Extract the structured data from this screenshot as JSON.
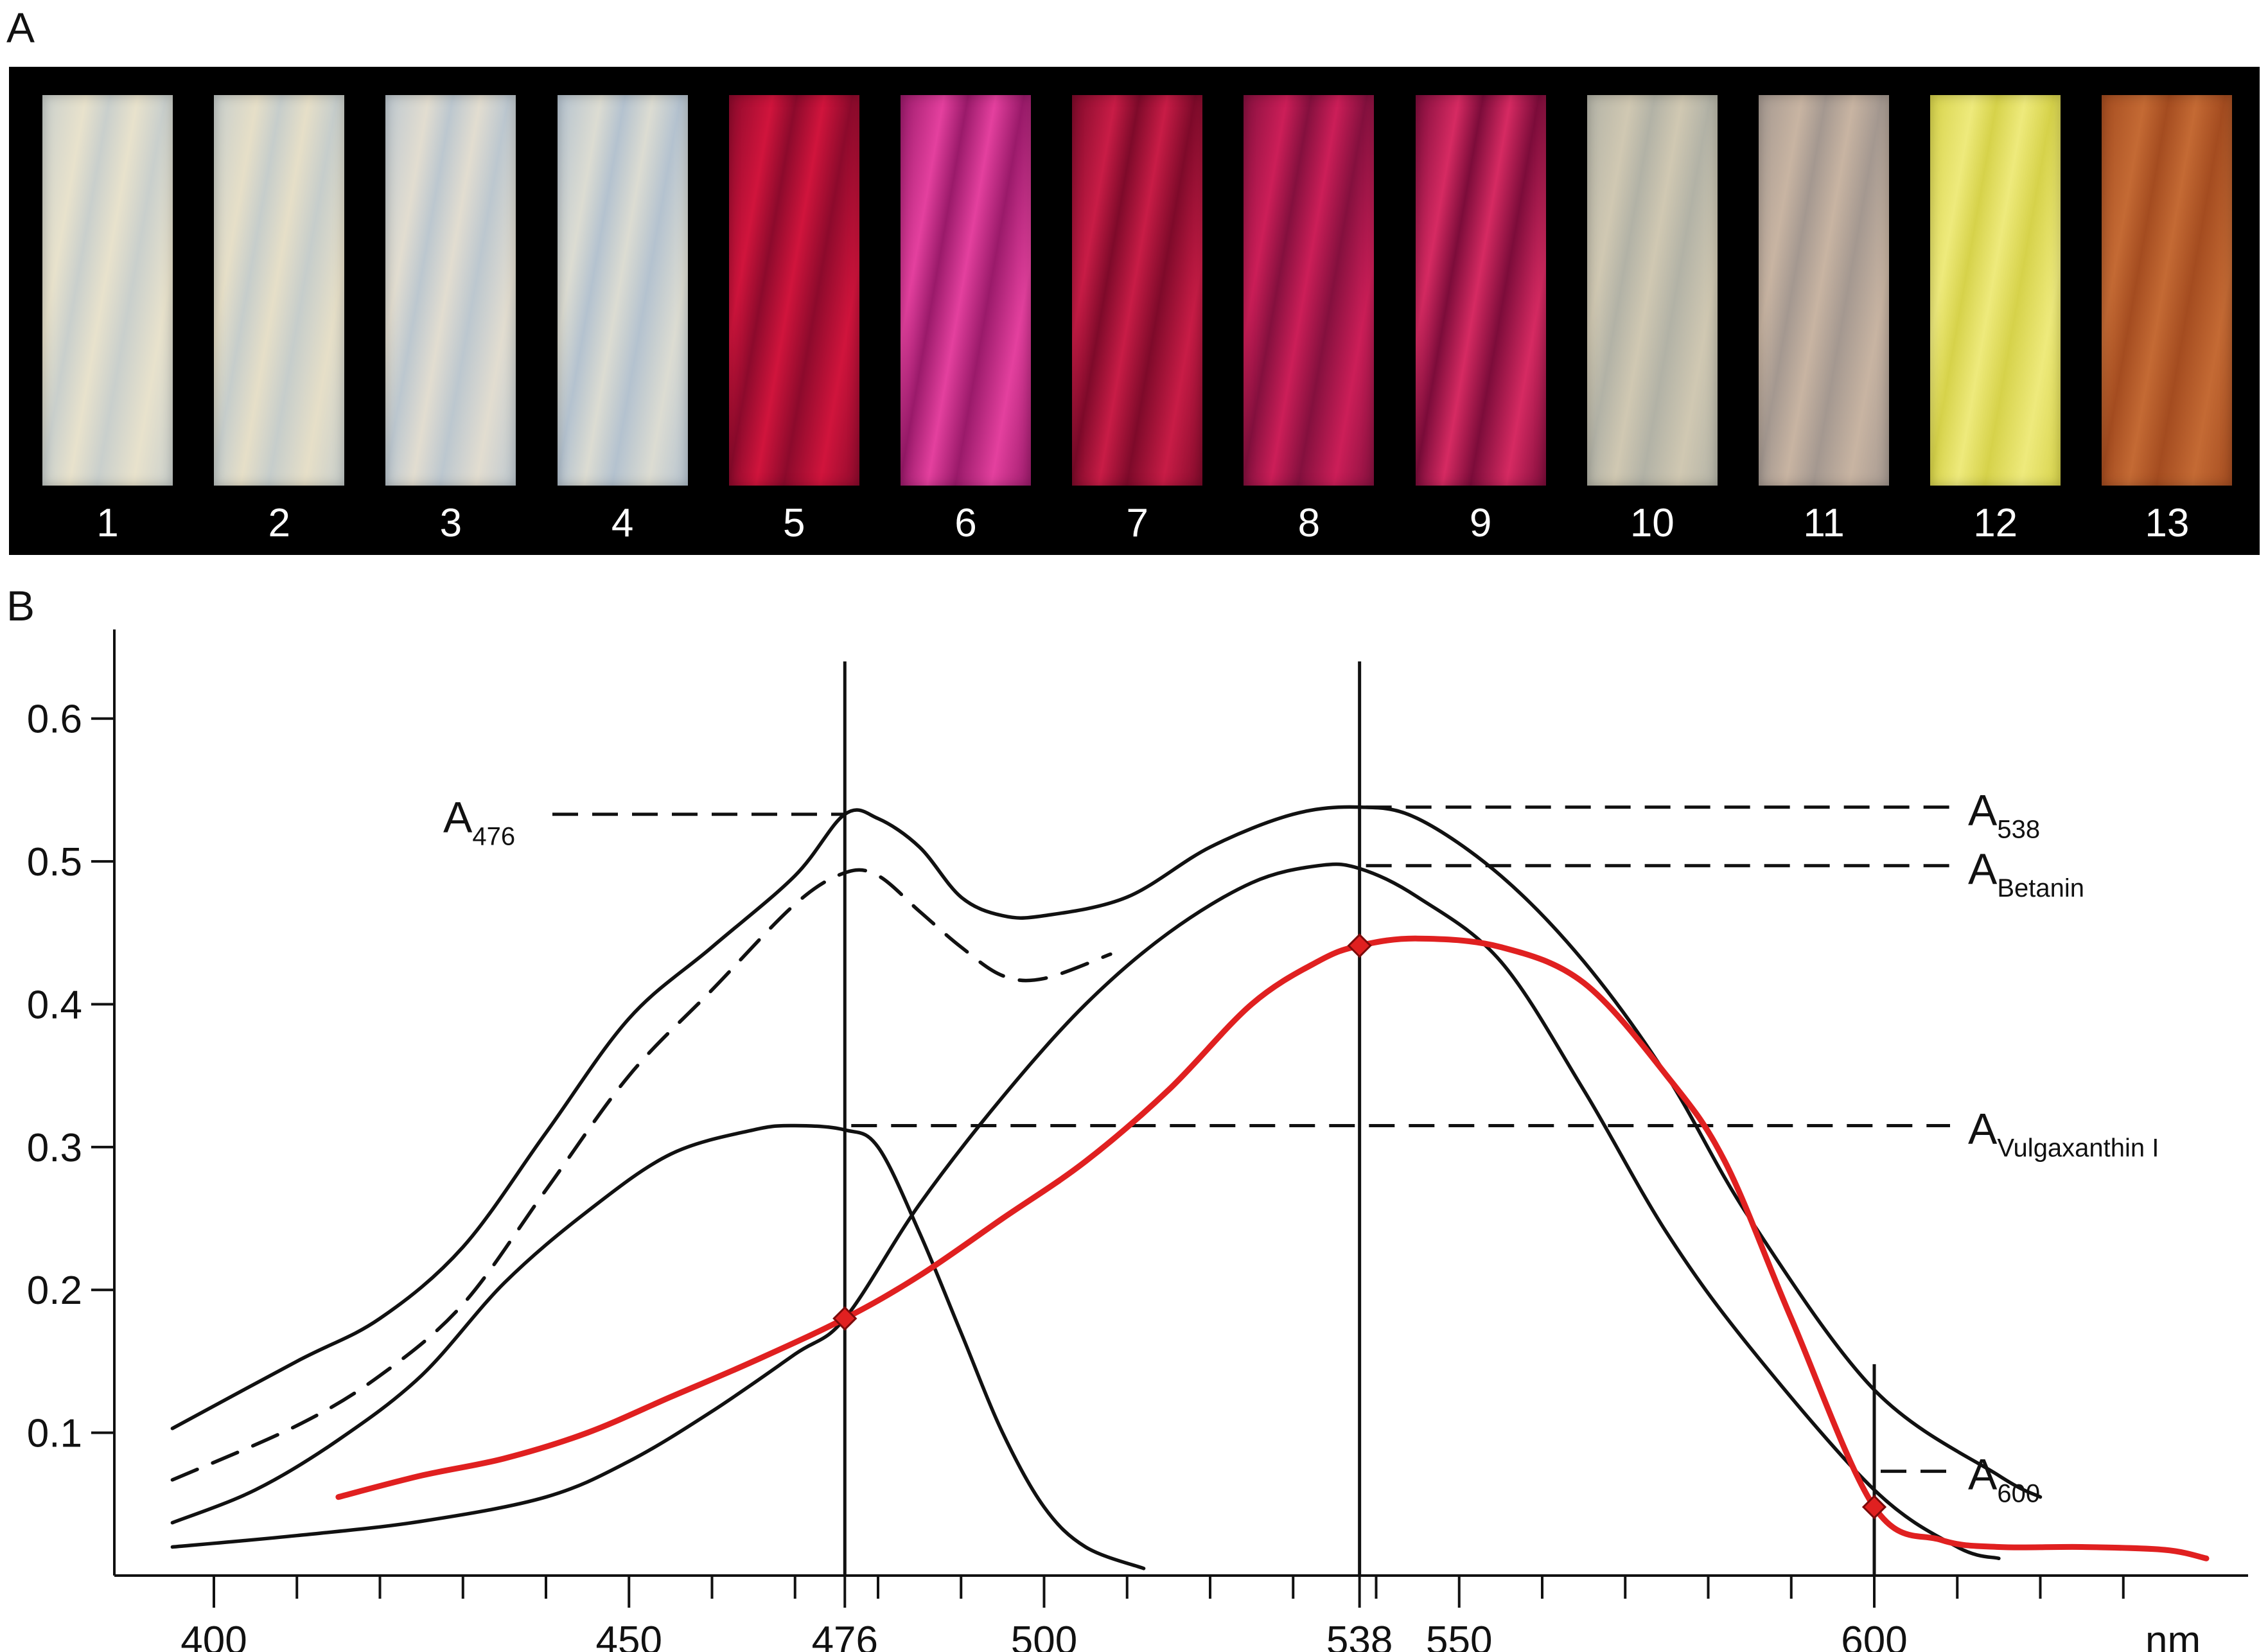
{
  "panels": {
    "a": "A",
    "b": "B"
  },
  "samples": [
    {
      "label": "1",
      "color": "#c9cfcc",
      "highlight": "#e8e2cc"
    },
    {
      "label": "2",
      "color": "#c6cdcb",
      "highlight": "#e6dfc8"
    },
    {
      "label": "3",
      "color": "#bcc7cf",
      "highlight": "#e2ddd0"
    },
    {
      "label": "4",
      "color": "#b4c2cf",
      "highlight": "#dcdcd2"
    },
    {
      "label": "5",
      "color": "#8c0a2c",
      "highlight": "#d0143c"
    },
    {
      "label": "6",
      "color": "#9a1a6a",
      "highlight": "#e4409e"
    },
    {
      "label": "7",
      "color": "#7e0a2a",
      "highlight": "#c81c46"
    },
    {
      "label": "8",
      "color": "#84103e",
      "highlight": "#cc1e58"
    },
    {
      "label": "9",
      "color": "#7c0c3a",
      "highlight": "#d62a62"
    },
    {
      "label": "10",
      "color": "#b2b2a6",
      "highlight": "#d0c8b2"
    },
    {
      "label": "11",
      "color": "#a49890",
      "highlight": "#c8b4a2"
    },
    {
      "label": "12",
      "color": "#d6d24a",
      "highlight": "#eeea7c"
    },
    {
      "label": "13",
      "color": "#a44c20",
      "highlight": "#c46a34"
    }
  ],
  "chart_data": {
    "type": "line",
    "xlabel": "nm",
    "ylabel": "",
    "xlim": [
      390,
      640
    ],
    "ylim": [
      0,
      0.63
    ],
    "x_ticks": [
      400,
      450,
      476,
      500,
      538,
      550,
      600
    ],
    "x_minor_ticks": [
      410,
      420,
      430,
      440,
      460,
      470,
      480,
      490,
      510,
      520,
      530,
      540,
      560,
      570,
      580,
      590,
      610,
      620,
      630
    ],
    "y_ticks": [
      "0.1",
      "0.2",
      "0.3",
      "0.4",
      "0.5",
      "0.6"
    ],
    "y_tick_values": [
      0.1,
      0.2,
      0.3,
      0.4,
      0.5,
      0.6
    ],
    "vertical_markers": [
      {
        "x": 476,
        "y_top": 0.64
      },
      {
        "x": 538,
        "y_top": 0.64
      },
      {
        "x": 600,
        "y_top": 0.148
      }
    ],
    "annotations": [
      {
        "base": "A",
        "sub": "476",
        "y": 0.533,
        "side": "left",
        "line_from_x": 476
      },
      {
        "base": "A",
        "sub": "538",
        "y": 0.538,
        "side": "right",
        "line_from_x": 538
      },
      {
        "base": "A",
        "sub": "Betanin",
        "y": 0.497,
        "side": "right",
        "line_from_x": 538
      },
      {
        "base": "A",
        "sub": "Vulgaxanthin I",
        "y": 0.315,
        "side": "right",
        "line_from_x": 476
      },
      {
        "base": "A",
        "sub": "600",
        "y": 0.073,
        "side": "right",
        "line_from_x": 600
      }
    ],
    "series": [
      {
        "style": "solid",
        "color": "#111111",
        "x": [
          395,
          410,
          420,
          430,
          440,
          450,
          460,
          470,
          476,
          480,
          485,
          490,
          495,
          500,
          510,
          520,
          530,
          538,
          545,
          555,
          565,
          575,
          585,
          600,
          615,
          620
        ],
        "y": [
          0.103,
          0.15,
          0.18,
          0.23,
          0.31,
          0.39,
          0.44,
          0.49,
          0.533,
          0.53,
          0.51,
          0.475,
          0.462,
          0.462,
          0.475,
          0.51,
          0.533,
          0.538,
          0.53,
          0.49,
          0.43,
          0.35,
          0.25,
          0.13,
          0.07,
          0.055
        ]
      },
      {
        "style": "dashed",
        "color": "#111111",
        "x": [
          395,
          410,
          420,
          430,
          440,
          450,
          460,
          470,
          476,
          480,
          485,
          490,
          495,
          500,
          508
        ],
        "y": [
          0.067,
          0.105,
          0.14,
          0.19,
          0.27,
          0.35,
          0.41,
          0.47,
          0.492,
          0.49,
          0.465,
          0.44,
          0.42,
          0.418,
          0.435
        ]
      },
      {
        "style": "solid",
        "color": "#111111",
        "x": [
          395,
          405,
          415,
          425,
          435,
          445,
          455,
          465,
          470,
          476,
          480,
          485,
          490,
          495,
          500,
          505,
          512
        ],
        "y": [
          0.037,
          0.06,
          0.095,
          0.14,
          0.205,
          0.255,
          0.295,
          0.312,
          0.315,
          0.312,
          0.3,
          0.24,
          0.17,
          0.1,
          0.048,
          0.02,
          0.005
        ]
      },
      {
        "style": "solid",
        "color": "#111111",
        "x": [
          395,
          410,
          425,
          440,
          450,
          460,
          470,
          476,
          485,
          495,
          505,
          515,
          525,
          533,
          538,
          545,
          555,
          565,
          575,
          585,
          600,
          610,
          615
        ],
        "y": [
          0.02,
          0.028,
          0.038,
          0.055,
          0.08,
          0.115,
          0.155,
          0.18,
          0.26,
          0.335,
          0.4,
          0.45,
          0.485,
          0.497,
          0.495,
          0.475,
          0.43,
          0.34,
          0.24,
          0.16,
          0.06,
          0.02,
          0.012
        ]
      },
      {
        "style": "solid",
        "color": "#e02020",
        "x": [
          415,
          425,
          435,
          445,
          455,
          465,
          476,
          485,
          495,
          505,
          515,
          525,
          533,
          538,
          545,
          555,
          565,
          575,
          582,
          590,
          600,
          608,
          615,
          625,
          635,
          640
        ],
        "y": [
          0.055,
          0.07,
          0.082,
          0.1,
          0.125,
          0.15,
          0.18,
          0.21,
          0.25,
          0.29,
          0.34,
          0.4,
          0.43,
          0.441,
          0.446,
          0.44,
          0.415,
          0.35,
          0.29,
          0.18,
          0.048,
          0.025,
          0.02,
          0.02,
          0.018,
          0.012
        ]
      }
    ],
    "intersection_points": [
      {
        "x": 476,
        "y": 0.18
      },
      {
        "x": 538,
        "y": 0.441
      },
      {
        "x": 600,
        "y": 0.048
      }
    ]
  }
}
